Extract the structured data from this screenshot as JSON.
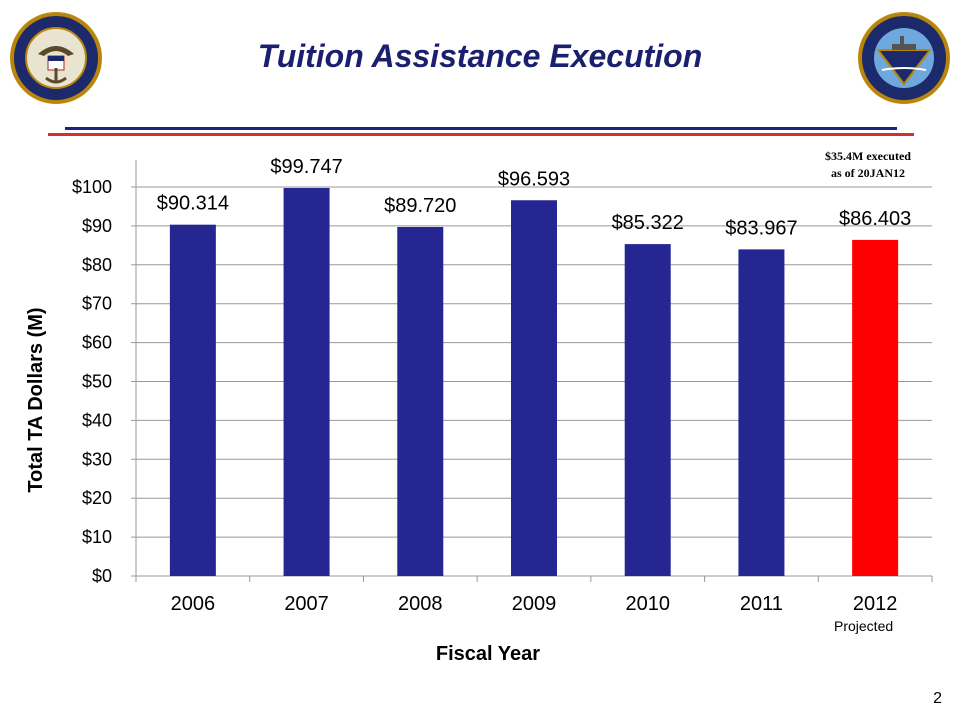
{
  "slide": {
    "title": "Tuition Assistance Execution",
    "page_number": "2",
    "left_logo_icon": "us-navy-chief-of-naval-operations-seal",
    "right_logo_icon": "naval-education-and-training-command-seal",
    "left_logo_text": "UNITED STATES NAVY · CHIEF OF NAVAL OPERATIONS",
    "right_logo_text": "NAVAL EDUCATION AND TRAINING COMMAND · EXCEL FOR READINESS",
    "annotation_line1": "$35.4M executed",
    "annotation_line2": "as of  20JAN12",
    "projected_label": "Projected"
  },
  "colors": {
    "title": "#1a1f6e",
    "bar": "#262693",
    "projected_bar": "#ff0000",
    "rule_blue": "#1a237e",
    "rule_red": "#d32f2f"
  },
  "chart_data": {
    "type": "bar",
    "title": "",
    "xlabel": "Fiscal Year",
    "ylabel": "Total TA Dollars (M)",
    "categories": [
      "2006",
      "2007",
      "2008",
      "2009",
      "2010",
      "2011",
      "2012"
    ],
    "values": [
      90.314,
      99.747,
      89.72,
      96.593,
      85.322,
      83.967,
      86.403
    ],
    "data_labels": [
      "$90.314",
      "$99.747",
      "$89.720",
      "$96.593",
      "$85.322",
      "$83.967",
      "$86.403"
    ],
    "bar_colors": [
      "#262693",
      "#262693",
      "#262693",
      "#262693",
      "#262693",
      "#262693",
      "#ff0000"
    ],
    "ylim": [
      0,
      100
    ],
    "yticks": [
      0,
      10,
      20,
      30,
      40,
      50,
      60,
      70,
      80,
      90,
      100
    ],
    "ytick_labels": [
      "$0",
      "$10",
      "$20",
      "$30",
      "$40",
      "$50",
      "$60",
      "$70",
      "$80",
      "$90",
      "$100"
    ],
    "grid": true,
    "legend": "none"
  }
}
